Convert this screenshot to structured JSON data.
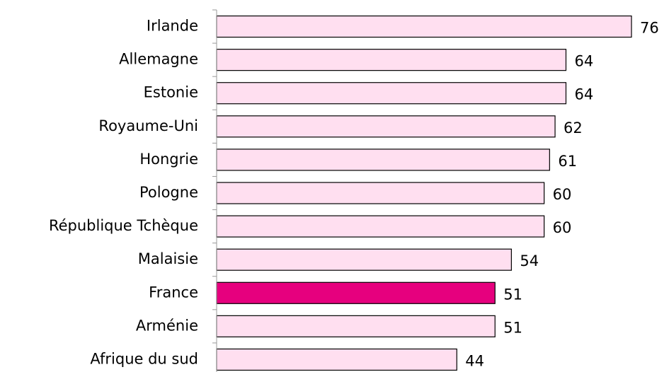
{
  "chart_data": {
    "type": "bar",
    "orientation": "horizontal",
    "categories": [
      "Irlande",
      "Allemagne",
      "Estonie",
      "Royaume-Uni",
      "Hongrie",
      "Pologne",
      "République Tchèque",
      "Malaisie",
      "France",
      "Arménie",
      "Afrique du sud"
    ],
    "values": [
      76,
      64,
      64,
      62,
      61,
      60,
      60,
      54,
      51,
      51,
      44
    ],
    "colors": [
      "#ffdff0",
      "#ffdff0",
      "#ffdff0",
      "#ffdff0",
      "#ffdff0",
      "#ffdff0",
      "#ffdff0",
      "#ffdff0",
      "#e6007e",
      "#ffdff0",
      "#ffdff0"
    ]
  }
}
